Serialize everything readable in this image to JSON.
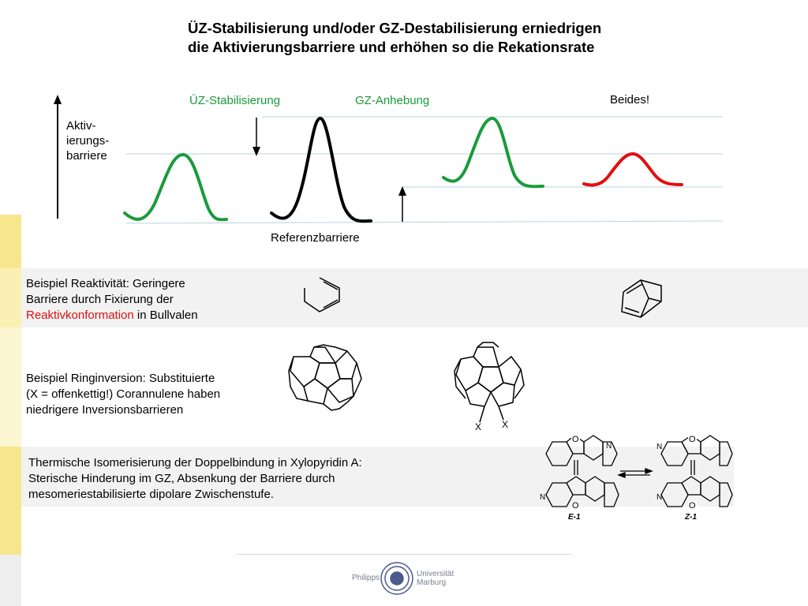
{
  "title": {
    "line1": "ÜZ-Stabilisierung und/oder GZ-Destabilisierung erniedrigen",
    "line2": "die Aktivierungsbarriere und erhöhen so die Rekationsrate"
  },
  "diagram": {
    "axis_label_1": "Aktiv-",
    "axis_label_2": "ierungs-",
    "axis_label_3": "barriere",
    "uz_label": "ÜZ-Stabilisierung",
    "gz_label": "GZ-Anhebung",
    "beides_label": "Beides!",
    "reference_label": "Referenzbarriere",
    "colors": {
      "green": "#1a9a3c",
      "black": "#000000",
      "red": "#e01010"
    }
  },
  "examples": {
    "ex1": {
      "line1": "Beispiel Reaktivität: Geringere",
      "line2": "Barriere durch Fixierung der",
      "line3_red": "Reaktivkonformation",
      "line3_rest": " in Bullvalen"
    },
    "ex2": {
      "line1": "Beispiel Ringinversion: Substituierte",
      "line2": "(X = offenkettig!) Corannulene haben",
      "line3": "niedrigere Inversionsbarrieren",
      "x_label": "X"
    },
    "ex3": {
      "line1": "Thermische Isomerisierung der Doppelbindung in Xylopyridin A:",
      "line2": "Sterische Hinderung im GZ, Absenkung der Barriere durch",
      "line3": "mesomeriestabilisierte dipolare Zwischenstufe.",
      "atom_o": "O",
      "atom_n": "N",
      "e_label": "E-1",
      "z_label": "Z-1"
    }
  },
  "footer": {
    "left_text": "Philipps",
    "right_text_1": "Universität",
    "right_text_2": "Marburg"
  }
}
